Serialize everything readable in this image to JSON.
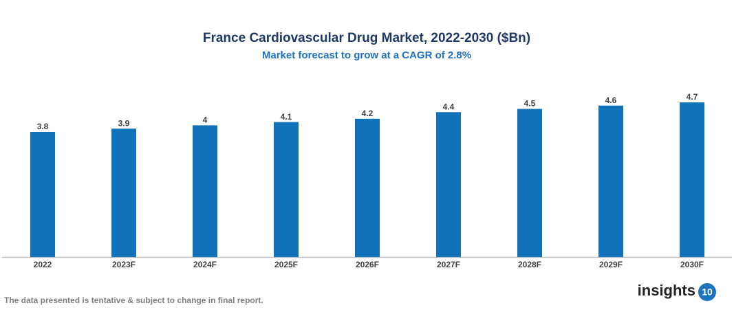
{
  "chart_data": {
    "type": "bar",
    "title": "France Cardiovascular Drug Market, 2022-2030 ($Bn)",
    "subtitle": "Market forecast to grow at a CAGR of 2.8%",
    "categories": [
      "2022",
      "2023F",
      "2024F",
      "2025F",
      "2026F",
      "2027F",
      "2028F",
      "2029F",
      "2030F"
    ],
    "values": [
      3.8,
      3.9,
      4,
      4.1,
      4.2,
      4.4,
      4.5,
      4.6,
      4.7
    ],
    "color": "#1172ba",
    "ylim": [
      0,
      5
    ],
    "grid": false,
    "footnote": "The data presented is tentative & subject to change in final report.",
    "logo_text": "insights",
    "logo_badge": "10"
  }
}
